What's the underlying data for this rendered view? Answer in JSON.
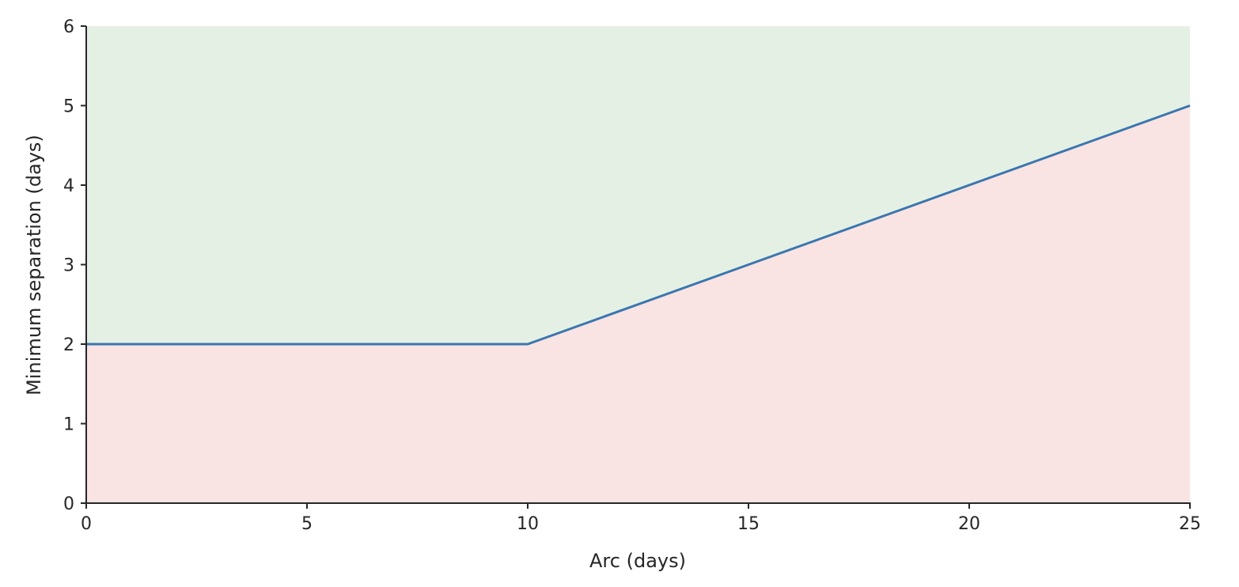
{
  "chart_data": {
    "type": "area",
    "title": "",
    "xlabel": "Arc (days)",
    "ylabel": "Minimum separation (days)",
    "xlim": [
      0,
      25
    ],
    "ylim": [
      0,
      6
    ],
    "x_ticks": [
      0,
      5,
      10,
      15,
      20,
      25
    ],
    "y_ticks": [
      0,
      1,
      2,
      3,
      4,
      5,
      6
    ],
    "x_tick_labels": [
      "0",
      "5",
      "10",
      "15",
      "20",
      "25"
    ],
    "y_tick_labels": [
      "0",
      "1",
      "2",
      "3",
      "4",
      "5",
      "6"
    ],
    "grid": false,
    "legend": "none",
    "series": [
      {
        "x": [
          0,
          10,
          25
        ],
        "y": [
          2,
          2,
          5
        ]
      }
    ],
    "regions": {
      "above_color": "#e5f0e5",
      "below_color": "#f9e3e3"
    },
    "colors": {
      "line": "#3a76af",
      "axis": "#262626"
    }
  }
}
